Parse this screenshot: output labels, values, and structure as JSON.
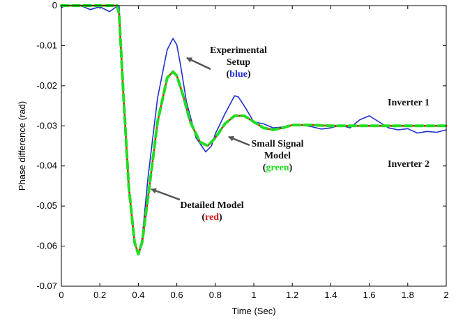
{
  "chart_data": {
    "type": "line",
    "xlabel": "Time (Sec)",
    "ylabel": "Phase difference (rad)",
    "xlim": [
      0,
      2
    ],
    "ylim": [
      -0.07,
      0
    ],
    "xticks": [
      "0",
      "0.2",
      "0.4",
      "0.6",
      "0.8",
      "1",
      "1.2",
      "1.4",
      "1.6",
      "1.8",
      "2"
    ],
    "yticks": [
      "0",
      "-0.01",
      "-0.02",
      "-0.03",
      "-0.04",
      "-0.05",
      "-0.06",
      "-0.07"
    ],
    "grid": false,
    "series": [
      {
        "color": "#1f2fd0",
        "x": [
          0.0,
          0.02,
          0.05,
          0.1,
          0.15,
          0.2,
          0.25,
          0.28,
          0.3,
          0.32,
          0.35,
          0.38,
          0.4,
          0.42,
          0.45,
          0.5,
          0.55,
          0.58,
          0.6,
          0.62,
          0.65,
          0.7,
          0.75,
          0.78,
          0.8,
          0.85,
          0.9,
          0.92,
          0.95,
          1.0,
          1.05,
          1.1,
          1.15,
          1.2,
          1.25,
          1.3,
          1.35,
          1.4,
          1.45,
          1.5,
          1.55,
          1.6,
          1.65,
          1.7,
          1.75,
          1.8,
          1.85,
          1.9,
          1.95,
          2.0
        ],
        "y": [
          -0.0005,
          0.0,
          0.0,
          0.0,
          -0.001,
          -0.0003,
          -0.0015,
          -0.0005,
          0.0,
          -0.02,
          -0.045,
          -0.059,
          -0.062,
          -0.058,
          -0.043,
          -0.023,
          -0.011,
          -0.0082,
          -0.0098,
          -0.015,
          -0.024,
          -0.033,
          -0.0365,
          -0.035,
          -0.032,
          -0.027,
          -0.0225,
          -0.0228,
          -0.025,
          -0.029,
          -0.0295,
          -0.0305,
          -0.0303,
          -0.0298,
          -0.0298,
          -0.0302,
          -0.0308,
          -0.0305,
          -0.0298,
          -0.0305,
          -0.0285,
          -0.0275,
          -0.029,
          -0.0305,
          -0.031,
          -0.0307,
          -0.0318,
          -0.0314,
          -0.0316,
          -0.031
        ]
      },
      {
        "color": "#dd1111",
        "x": [
          0.0,
          0.29,
          0.3,
          0.32,
          0.35,
          0.38,
          0.4,
          0.42,
          0.45,
          0.5,
          0.55,
          0.58,
          0.6,
          0.63,
          0.67,
          0.72,
          0.76,
          0.8,
          0.85,
          0.9,
          0.95,
          1.0,
          1.05,
          1.1,
          1.15,
          1.2,
          1.3,
          1.4,
          1.5,
          1.6,
          1.7,
          1.8,
          1.9,
          2.0
        ],
        "y": [
          0.0,
          0.0,
          -0.002,
          -0.02,
          -0.045,
          -0.059,
          -0.062,
          -0.059,
          -0.048,
          -0.029,
          -0.018,
          -0.0165,
          -0.0175,
          -0.022,
          -0.029,
          -0.034,
          -0.035,
          -0.033,
          -0.0295,
          -0.0275,
          -0.0275,
          -0.029,
          -0.0305,
          -0.031,
          -0.0305,
          -0.0298,
          -0.0298,
          -0.03,
          -0.03,
          -0.03,
          -0.03,
          -0.03,
          -0.03,
          -0.03
        ]
      },
      {
        "color": "#22dd22",
        "x": [
          0.0,
          0.29,
          0.3,
          0.32,
          0.35,
          0.38,
          0.4,
          0.42,
          0.45,
          0.5,
          0.55,
          0.58,
          0.6,
          0.63,
          0.67,
          0.72,
          0.76,
          0.8,
          0.85,
          0.9,
          0.95,
          1.0,
          1.05,
          1.1,
          1.15,
          1.2,
          1.3,
          1.4,
          1.5,
          1.6,
          1.7,
          1.8,
          1.9,
          2.0
        ],
        "y": [
          0.0,
          0.0,
          -0.002,
          -0.02,
          -0.045,
          -0.059,
          -0.062,
          -0.059,
          -0.048,
          -0.029,
          -0.018,
          -0.0165,
          -0.0175,
          -0.022,
          -0.029,
          -0.034,
          -0.035,
          -0.033,
          -0.0295,
          -0.0275,
          -0.0275,
          -0.029,
          -0.0305,
          -0.031,
          -0.0305,
          -0.0298,
          -0.0298,
          -0.03,
          -0.03,
          -0.03,
          -0.03,
          -0.03,
          -0.03,
          -0.03
        ]
      }
    ],
    "annotations": {
      "experimental": {
        "line1": "Experimental",
        "line2": "Setup",
        "paren_open": "(",
        "color_word": "blue",
        "paren_close": ")",
        "color": "#1f2fd0"
      },
      "small_signal": {
        "line1": "Small Signal",
        "line2": "Model",
        "paren_open": "(",
        "color_word": "green",
        "paren_close": ")",
        "color": "#22dd22"
      },
      "detailed": {
        "line1": "Detailed Model",
        "paren_open": "(",
        "color_word": "red",
        "paren_close": ")",
        "color": "#dd1111"
      },
      "inverter1": "Inverter 1",
      "inverter2": "Inverter 2"
    }
  }
}
